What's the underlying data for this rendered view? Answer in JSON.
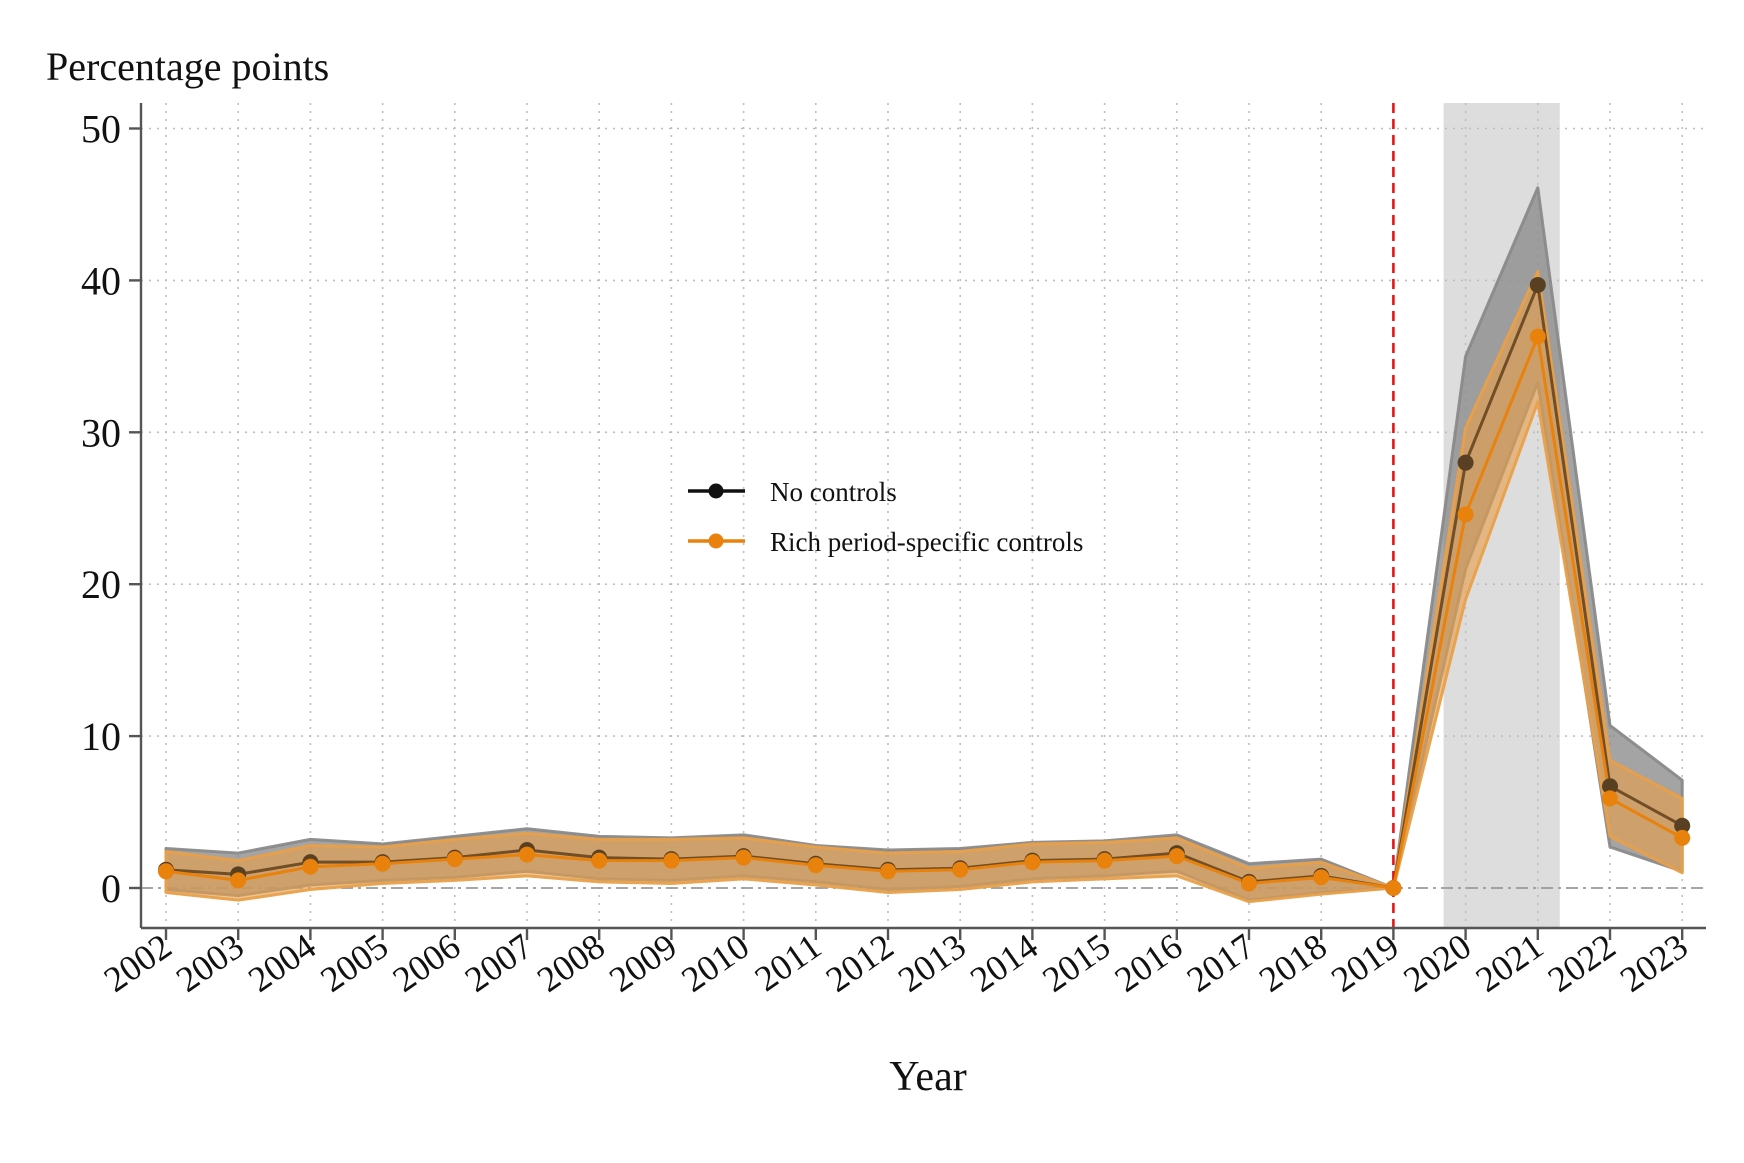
{
  "chart_data": {
    "type": "line",
    "title": "",
    "ylabel": "Percentage points",
    "xlabel": "Year",
    "ylim": [
      -2.5,
      51.5
    ],
    "yticks": [
      0,
      10,
      20,
      30,
      40,
      50
    ],
    "x": [
      "2002",
      "2003",
      "2004",
      "2005",
      "2006",
      "2007",
      "2008",
      "2009",
      "2010",
      "2011",
      "2012",
      "2013",
      "2014",
      "2015",
      "2016",
      "2017",
      "2018",
      "2019",
      "2020",
      "2021",
      "2022",
      "2023"
    ],
    "reference_line": {
      "x": "2019",
      "style": "dashed",
      "color": "#e8141b"
    },
    "zero_line": {
      "y": 0,
      "style": "dash-dot",
      "color": "#999999"
    },
    "shaded_period": {
      "from": "2020",
      "to": "2021",
      "color": "#dddddd"
    },
    "grid": true,
    "legend": {
      "position": "center"
    },
    "series": [
      {
        "name": "No controls",
        "color": "#111111",
        "band_color": "#8a8a8a",
        "values": [
          1.2,
          0.9,
          1.7,
          1.7,
          2.0,
          2.5,
          2.0,
          1.9,
          2.1,
          1.6,
          1.2,
          1.3,
          1.8,
          1.9,
          2.3,
          0.4,
          0.8,
          0.0,
          28.0,
          39.7,
          6.7,
          4.1
        ],
        "ci_low": [
          -0.1,
          -0.5,
          0.2,
          0.5,
          0.7,
          1.1,
          0.6,
          0.5,
          0.8,
          0.4,
          -0.1,
          0.1,
          0.6,
          0.8,
          1.1,
          -0.8,
          -0.3,
          0.0,
          21.0,
          33.3,
          2.7,
          1.1
        ],
        "ci_high": [
          2.6,
          2.3,
          3.2,
          2.9,
          3.4,
          3.9,
          3.4,
          3.3,
          3.5,
          2.8,
          2.5,
          2.6,
          3.0,
          3.1,
          3.5,
          1.6,
          1.9,
          0.0,
          35.0,
          46.1,
          10.7,
          7.1
        ]
      },
      {
        "name": "Rich period-specific controls",
        "color": "#e8820c",
        "band_color": "#e8a04a",
        "values": [
          1.1,
          0.5,
          1.4,
          1.6,
          1.9,
          2.2,
          1.8,
          1.8,
          2.0,
          1.5,
          1.1,
          1.2,
          1.7,
          1.8,
          2.1,
          0.3,
          0.7,
          0.0,
          24.6,
          36.3,
          5.9,
          3.3
        ],
        "ci_low": [
          -0.3,
          -0.8,
          -0.1,
          0.3,
          0.5,
          0.8,
          0.4,
          0.3,
          0.6,
          0.2,
          -0.3,
          -0.1,
          0.4,
          0.6,
          0.8,
          -0.9,
          -0.4,
          0.0,
          19.0,
          32.0,
          3.4,
          1.0
        ],
        "ci_high": [
          2.4,
          1.8,
          2.8,
          2.7,
          3.2,
          3.6,
          3.2,
          3.2,
          3.3,
          2.7,
          2.3,
          2.4,
          2.9,
          3.0,
          3.3,
          1.3,
          1.7,
          0.0,
          30.3,
          40.6,
          8.4,
          5.9
        ]
      }
    ]
  }
}
